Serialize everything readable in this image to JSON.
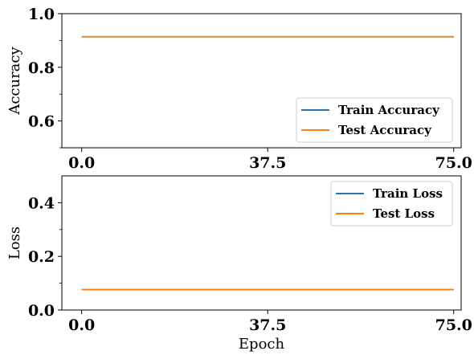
{
  "chart_data": [
    {
      "type": "line",
      "xlabel": "",
      "ylabel": "Accuracy",
      "xlim": [
        -4,
        76.5
      ],
      "ylim": [
        0.5,
        1.0
      ],
      "xticks": [
        0,
        37.5,
        75
      ],
      "xtick_labels": [
        "0.0",
        "37.5",
        "75.0"
      ],
      "yticks": [
        0.6,
        0.8,
        1.0
      ],
      "ytick_labels": [
        "0.6",
        "0.8",
        "1.0"
      ],
      "yminor_ticks": [
        0.5,
        0.7,
        0.9
      ],
      "legend_position": "lower-right",
      "series": [
        {
          "name": "Train Accuracy",
          "color": "#1f77b4",
          "x": [
            0,
            75
          ],
          "y": [
            0.914,
            0.914
          ]
        },
        {
          "name": "Test Accuracy",
          "color": "#ff7f0e",
          "x": [
            0,
            75
          ],
          "y": [
            0.914,
            0.914
          ]
        }
      ]
    },
    {
      "type": "line",
      "xlabel": "Epoch",
      "ylabel": "Loss",
      "xlim": [
        -4,
        76.5
      ],
      "ylim": [
        0.0,
        0.5
      ],
      "xticks": [
        0,
        37.5,
        75
      ],
      "xtick_labels": [
        "0.0",
        "37.5",
        "75.0"
      ],
      "yticks": [
        0.0,
        0.2,
        0.4
      ],
      "ytick_labels": [
        "0.0",
        "0.2",
        "0.4"
      ],
      "yminor_ticks": [
        0.1,
        0.3
      ],
      "legend_position": "upper-right",
      "series": [
        {
          "name": "Train Loss",
          "color": "#1f77b4",
          "x": [
            0,
            75
          ],
          "y": [
            0.076,
            0.076
          ]
        },
        {
          "name": "Test Loss",
          "color": "#ff7f0e",
          "x": [
            0,
            75
          ],
          "y": [
            0.076,
            0.076
          ]
        }
      ]
    }
  ]
}
